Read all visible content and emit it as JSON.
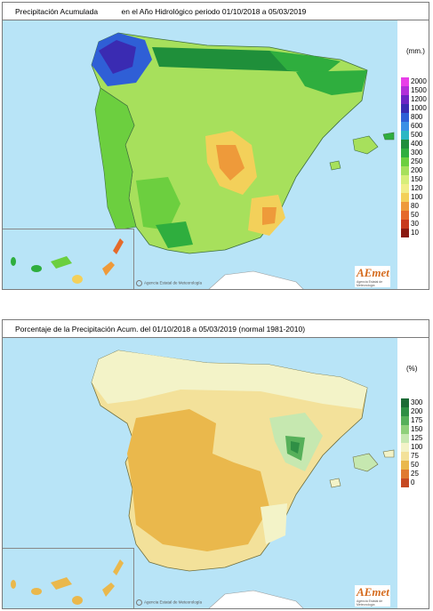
{
  "maps": [
    {
      "title_left": "Precipitación Acumulada",
      "title_right": "en el Año Hidrológico  periodo 01/10/2018 a 05/03/2019",
      "unit": "(mm.)",
      "legend": [
        {
          "label": "2000",
          "color": "#e83fe8"
        },
        {
          "label": "1500",
          "color": "#b12fd9"
        },
        {
          "label": "1200",
          "color": "#6c25c4"
        },
        {
          "label": "1000",
          "color": "#3a2bb2"
        },
        {
          "label": "800",
          "color": "#2f5fd6"
        },
        {
          "label": "600",
          "color": "#3a8fe6"
        },
        {
          "label": "500",
          "color": "#2bb7c4"
        },
        {
          "label": "400",
          "color": "#1f8f3a"
        },
        {
          "label": "300",
          "color": "#2fae3e"
        },
        {
          "label": "250",
          "color": "#6ccf3f"
        },
        {
          "label": "200",
          "color": "#a7e05c"
        },
        {
          "label": "150",
          "color": "#d7ee7a"
        },
        {
          "label": "120",
          "color": "#f1ee8a"
        },
        {
          "label": "100",
          "color": "#f3d05a"
        },
        {
          "label": "80",
          "color": "#ee9a3a"
        },
        {
          "label": "50",
          "color": "#e56a2a"
        },
        {
          "label": "30",
          "color": "#c83a1e"
        },
        {
          "label": "10",
          "color": "#8a1a12"
        }
      ],
      "agency": "Agencia Estatal de Meteorología",
      "logo_text": "AEmet",
      "logo_sub": "Agencia Estatal de Meteorología"
    },
    {
      "title_left": "Porcentaje de la Precipitación Acum. del 01/10/2018 a  05/03/2019  (normal 1981-2010)",
      "title_right": "",
      "unit": "(%)",
      "legend": [
        {
          "label": "300",
          "color": "#1d6b36"
        },
        {
          "label": "200",
          "color": "#2f8f45"
        },
        {
          "label": "175",
          "color": "#56b05a"
        },
        {
          "label": "150",
          "color": "#8fd07a"
        },
        {
          "label": "125",
          "color": "#c6e8b0"
        },
        {
          "label": "100",
          "color": "#f3f3c8"
        },
        {
          "label": "75",
          "color": "#f3e19a"
        },
        {
          "label": "50",
          "color": "#eab84c"
        },
        {
          "label": "25",
          "color": "#e07a30"
        },
        {
          "label": "0",
          "color": "#c64a22"
        }
      ],
      "agency": "Agencia Estatal de Meteorología",
      "logo_text": "AEmet",
      "logo_sub": "Agencia Estatal de Meteorología"
    }
  ]
}
